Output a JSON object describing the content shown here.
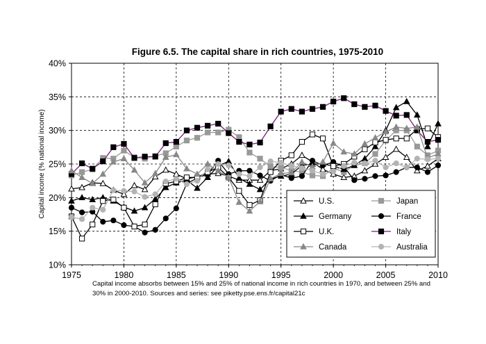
{
  "chart_data": {
    "type": "line",
    "title": "Figure 6.5. The capital share in rich countries, 1975-2010",
    "xlabel": "",
    "ylabel": "Capital income (% national income)",
    "caption_lines": [
      "Capital income absorbs between 15% and 25% of national income in rich countries in 1970, and between 25% and",
      "30% in 2000-2010. Sources and series: see piketty.pse.ens.fr/capital21c"
    ],
    "xlim": [
      1975,
      2010
    ],
    "ylim": [
      0.1,
      0.4
    ],
    "x_ticks": [
      1975,
      1980,
      1985,
      1990,
      1995,
      2000,
      2005,
      2010
    ],
    "x_tick_labels": [
      "1975",
      "1980",
      "1985",
      "1990",
      "1995",
      "2000",
      "2005",
      "2010"
    ],
    "y_ticks": [
      0.1,
      0.15,
      0.2,
      0.25,
      0.3,
      0.35,
      0.4
    ],
    "y_tick_labels": [
      "10%",
      "15%",
      "20%",
      "25%",
      "30%",
      "35%",
      "40%"
    ],
    "grid": "dashed",
    "legend_position": "bottom-right",
    "x": [
      1975,
      1976,
      1977,
      1978,
      1979,
      1980,
      1981,
      1982,
      1983,
      1984,
      1985,
      1986,
      1987,
      1988,
      1989,
      1990,
      1991,
      1992,
      1993,
      1994,
      1995,
      1996,
      1997,
      1998,
      1999,
      2000,
      2001,
      2002,
      2003,
      2004,
      2005,
      2006,
      2007,
      2008,
      2009,
      2010
    ],
    "series": [
      {
        "name": "U.S.",
        "marker": "triangle-open",
        "color": "#000000",
        "values": [
          0.213,
          0.215,
          0.222,
          0.221,
          0.211,
          0.205,
          0.218,
          0.212,
          0.231,
          0.241,
          0.235,
          0.228,
          0.231,
          0.235,
          0.236,
          0.232,
          0.226,
          0.226,
          0.226,
          0.24,
          0.243,
          0.25,
          0.263,
          0.253,
          0.242,
          0.235,
          0.23,
          0.232,
          0.24,
          0.25,
          0.26,
          0.272,
          0.26,
          0.24,
          0.247,
          0.258
        ]
      },
      {
        "name": "Japan",
        "marker": "square",
        "color": "#999999",
        "values": [
          0.233,
          0.238,
          0.242,
          0.259,
          0.258,
          0.27,
          0.26,
          0.258,
          0.262,
          0.266,
          0.276,
          0.285,
          0.289,
          0.297,
          0.297,
          0.301,
          0.29,
          0.267,
          0.258,
          0.246,
          0.245,
          0.24,
          0.238,
          0.233,
          0.232,
          0.244,
          0.238,
          0.248,
          0.251,
          0.265,
          0.285,
          0.3,
          0.3,
          0.276,
          0.263,
          0.27
        ]
      },
      {
        "name": "Germany",
        "marker": "triangle",
        "color": "#000000",
        "values": [
          0.195,
          0.2,
          0.197,
          0.2,
          0.195,
          0.186,
          0.18,
          0.185,
          0.198,
          0.215,
          0.222,
          0.226,
          0.214,
          0.23,
          0.247,
          0.254,
          0.229,
          0.22,
          0.212,
          0.228,
          0.232,
          0.235,
          0.248,
          0.25,
          0.25,
          0.247,
          0.242,
          0.248,
          0.258,
          0.276,
          0.3,
          0.334,
          0.343,
          0.323,
          0.276,
          0.31
        ]
      },
      {
        "name": "France",
        "marker": "circle",
        "color": "#000000",
        "values": [
          0.185,
          0.178,
          0.179,
          0.164,
          0.166,
          0.159,
          0.157,
          0.148,
          0.152,
          0.169,
          0.184,
          0.221,
          0.229,
          0.235,
          0.255,
          0.235,
          0.24,
          0.24,
          0.233,
          0.225,
          0.234,
          0.229,
          0.232,
          0.255,
          0.248,
          0.253,
          0.246,
          0.226,
          0.228,
          0.232,
          0.233,
          0.238,
          0.245,
          0.245,
          0.238,
          0.248
        ]
      },
      {
        "name": "U.K.",
        "marker": "square-open",
        "color": "#000000",
        "values": [
          0.172,
          0.139,
          0.16,
          0.195,
          0.197,
          0.185,
          0.157,
          0.16,
          0.19,
          0.221,
          0.224,
          0.23,
          0.23,
          0.238,
          0.245,
          0.23,
          0.21,
          0.189,
          0.196,
          0.238,
          0.255,
          0.263,
          0.283,
          0.294,
          0.288,
          0.247,
          0.25,
          0.261,
          0.272,
          0.282,
          0.286,
          0.288,
          0.288,
          0.302,
          0.303,
          0.29
        ]
      },
      {
        "name": "Italy",
        "marker": "square",
        "color": "#000000",
        "line_color": "#7a1a7a",
        "values": [
          0.235,
          0.251,
          0.243,
          0.254,
          0.275,
          0.28,
          0.259,
          0.261,
          0.261,
          0.281,
          0.283,
          0.3,
          0.304,
          0.307,
          0.31,
          0.296,
          0.283,
          0.279,
          0.282,
          0.306,
          0.328,
          0.332,
          0.328,
          0.332,
          0.335,
          0.343,
          0.348,
          0.339,
          0.335,
          0.337,
          0.329,
          0.322,
          0.323,
          0.3,
          0.283,
          0.286
        ]
      },
      {
        "name": "Canada",
        "marker": "triangle",
        "color": "#888888",
        "values": [
          0.24,
          0.23,
          0.221,
          0.235,
          0.253,
          0.258,
          0.241,
          0.222,
          0.236,
          0.26,
          0.264,
          0.243,
          0.235,
          0.25,
          0.24,
          0.23,
          0.193,
          0.18,
          0.194,
          0.228,
          0.236,
          0.237,
          0.253,
          0.246,
          0.253,
          0.281,
          0.268,
          0.265,
          0.28,
          0.289,
          0.298,
          0.305,
          0.303,
          0.305,
          0.259,
          0.265
        ]
      },
      {
        "name": "Australia",
        "marker": "circle",
        "color": "#b3b3b3",
        "values": [
          0.171,
          0.168,
          0.185,
          0.182,
          0.211,
          0.21,
          0.209,
          0.201,
          0.205,
          0.224,
          0.228,
          0.22,
          0.225,
          0.242,
          0.25,
          0.248,
          0.235,
          0.232,
          0.245,
          0.254,
          0.252,
          0.247,
          0.244,
          0.24,
          0.235,
          0.239,
          0.247,
          0.252,
          0.251,
          0.255,
          0.245,
          0.251,
          0.245,
          0.258,
          0.257,
          0.258
        ]
      }
    ]
  }
}
